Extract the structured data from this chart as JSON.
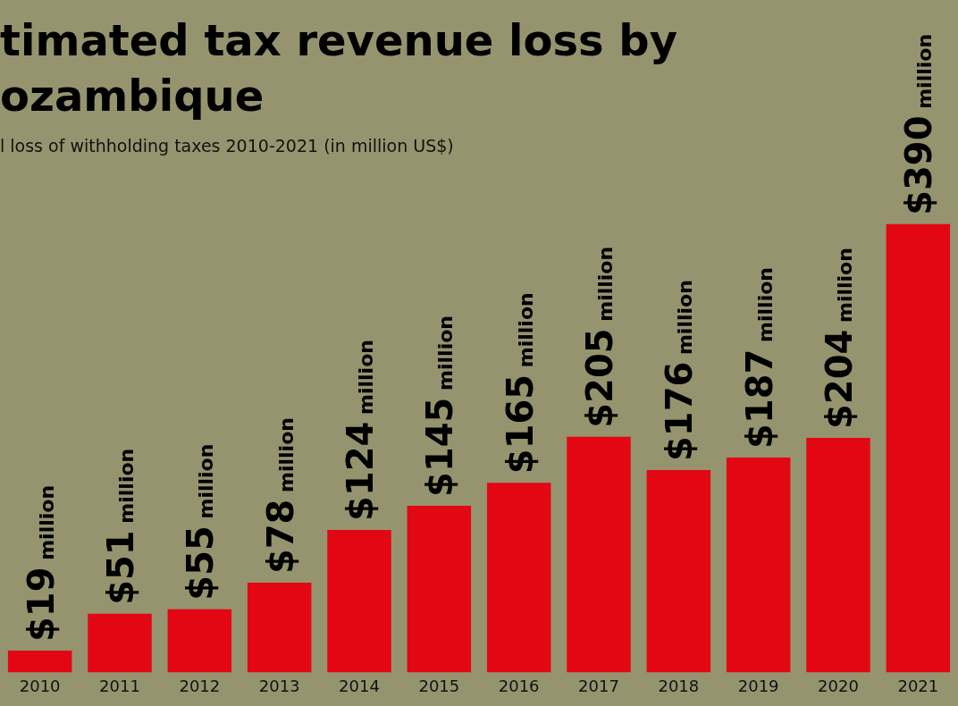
{
  "chart_data": {
    "type": "bar",
    "title": "timated tax revenue loss by ozambique",
    "subtitle": "l loss of withholding taxes 2010-2021 (in million US$)",
    "categories": [
      "2010",
      "2011",
      "2012",
      "2013",
      "2014",
      "2015",
      "2016",
      "2017",
      "2018",
      "2019",
      "2020",
      "2021"
    ],
    "values": [
      19,
      51,
      55,
      78,
      124,
      145,
      165,
      205,
      176,
      187,
      204,
      390
    ],
    "value_labels": [
      "$19 million",
      "$51 million",
      "$55 million",
      "$78 million",
      "$124 million",
      "$145 million",
      "$165 million",
      "$205 million",
      "$176 million",
      "$187 million",
      "$204 million",
      "$390 million"
    ],
    "color": "#e30613",
    "grid": false,
    "legend": false,
    "tick_labels": "x"
  }
}
